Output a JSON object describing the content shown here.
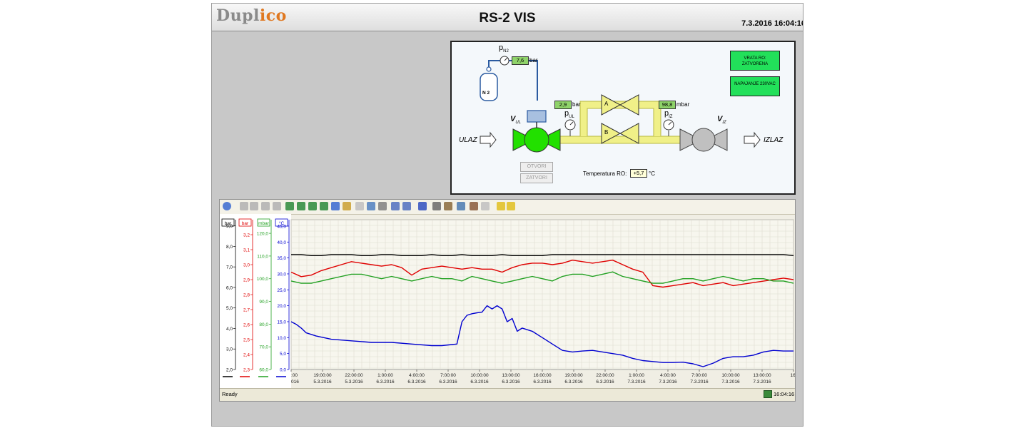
{
  "header": {
    "logo_part1": "Dupl",
    "logo_i": "i",
    "logo_part2": "co",
    "title": "RS-2 VIS",
    "datetime": "7.3.2016 16:04:16"
  },
  "schematic": {
    "pn2_main": "p",
    "pn2_sub": "N2",
    "pn2_value": "7,6",
    "pn2_unit": "bar",
    "n2_label": "N 2",
    "vul_main": "V",
    "vul_sub": "UL",
    "pul_main": "p",
    "pul_sub": "UL",
    "pul_value": "2,9",
    "pul_unit": "bar",
    "valve_a": "A",
    "valve_b": "B",
    "piz_main": "p",
    "piz_sub": "IZ",
    "piz_value": "98,8",
    "piz_unit": "mbar",
    "viz_main": "V",
    "viz_sub": "IZ",
    "ulaz": "ULAZ",
    "izlaz": "IZLAZ",
    "door_status": "VRATA RO: ZATVORENA",
    "power_status": "NAPAJANJE 230VAC",
    "open_button": "OTVORI",
    "close_button": "ZATVORI",
    "temp_label": "Temperatura RO:",
    "temp_value": "+5,7",
    "temp_unit": "°C",
    "colors": {
      "valve_active": "#22e000",
      "valve_inactive": "#c0c0c0",
      "pipe": "#f0f088",
      "n2_line": "#2a5aa0"
    }
  },
  "trend": {
    "status_ready": "Ready",
    "status_time": "16:04:16",
    "toolbar_icons": [
      "help-icon",
      "first-icon",
      "prev-icon",
      "next-icon",
      "last-icon",
      "zoom-in-icon",
      "zoom-in-x-icon",
      "zoom-out-icon",
      "zoom-reset-icon",
      "pan-icon",
      "cursor-icon",
      "grid-icon",
      "list-icon",
      "clock-icon",
      "timespan-icon",
      "timespan2-icon",
      "pause-icon",
      "print-icon",
      "copy-icon",
      "config-icon",
      "export-icon",
      "disabled-icon",
      "alarm-icon",
      "bookmark-icon"
    ]
  },
  "chart_data": {
    "type": "line",
    "axes": [
      {
        "unit": "bar",
        "color": "#000000",
        "ticks": [
          "2,0",
          "3,0",
          "4,0",
          "5,0",
          "6,0",
          "7,0",
          "8,0",
          "9,0"
        ]
      },
      {
        "unit": "bar",
        "color": "#e00000",
        "ticks": [
          "2,3",
          "2,4",
          "2,5",
          "2,6",
          "2,7",
          "2,8",
          "2,9",
          "3,0",
          "3,1",
          "3,2"
        ]
      },
      {
        "unit": "mbar",
        "color": "#20a020",
        "ticks": [
          "60,0",
          "70,0",
          "80,0",
          "90,0",
          "100,0",
          "110,0",
          "120,0"
        ]
      },
      {
        "unit": "°C",
        "color": "#0000d0",
        "ticks": [
          "0,0",
          "5,0",
          "10,0",
          "15,0",
          "20,0",
          "25,0",
          "30,0",
          "35,0",
          "40,0",
          "45,0"
        ]
      }
    ],
    "x_labels": [
      {
        "time": ":00",
        "date": "016"
      },
      {
        "time": "19:00:00",
        "date": "5.3.2016"
      },
      {
        "time": "22:00:00",
        "date": "5.3.2016"
      },
      {
        "time": "1:00:00",
        "date": "6.3.2016"
      },
      {
        "time": "4:00:00",
        "date": "6.3.2016"
      },
      {
        "time": "7:00:00",
        "date": "6.3.2016"
      },
      {
        "time": "10:00:00",
        "date": "6.3.2016"
      },
      {
        "time": "13:00:00",
        "date": "6.3.2016"
      },
      {
        "time": "16:00:00",
        "date": "6.3.2016"
      },
      {
        "time": "19:00:00",
        "date": "6.3.2016"
      },
      {
        "time": "22:00:00",
        "date": "6.3.2016"
      },
      {
        "time": "1:00:00",
        "date": "7.3.2016"
      },
      {
        "time": "4:00:00",
        "date": "7.3.2016"
      },
      {
        "time": "7:00:00",
        "date": "7.3.2016"
      },
      {
        "time": "10:00:00",
        "date": "7.3.2016"
      },
      {
        "time": "13:00:00",
        "date": "7.3.2016"
      },
      {
        "time": "16:"
      }
    ],
    "series": [
      {
        "axis": 0,
        "color": "#000000",
        "x": [
          0,
          2,
          4,
          6,
          8,
          10,
          12,
          14,
          16,
          18,
          20,
          22,
          24,
          26,
          28,
          30,
          32,
          34,
          36,
          38,
          40,
          42,
          44,
          46,
          48,
          50,
          52,
          54,
          56,
          58,
          60,
          62,
          64,
          66,
          68,
          70,
          72,
          74,
          76,
          78,
          80,
          82,
          84,
          86,
          88,
          90,
          92,
          94,
          96,
          98,
          100
        ],
        "values": [
          7.6,
          7.6,
          7.55,
          7.55,
          7.6,
          7.6,
          7.6,
          7.55,
          7.55,
          7.6,
          7.6,
          7.55,
          7.55,
          7.55,
          7.6,
          7.55,
          7.55,
          7.6,
          7.55,
          7.55,
          7.55,
          7.6,
          7.55,
          7.55,
          7.55,
          7.55,
          7.6,
          7.6,
          7.6,
          7.6,
          7.6,
          7.6,
          7.6,
          7.6,
          7.6,
          7.6,
          7.6,
          7.6,
          7.6,
          7.6,
          7.6,
          7.6,
          7.6,
          7.6,
          7.6,
          7.6,
          7.6,
          7.6,
          7.6,
          7.6,
          7.55
        ]
      },
      {
        "axis": 1,
        "color": "#e00000",
        "x": [
          0,
          2,
          4,
          6,
          8,
          10,
          12,
          14,
          16,
          18,
          20,
          22,
          24,
          26,
          28,
          30,
          32,
          34,
          36,
          38,
          40,
          42,
          44,
          46,
          48,
          50,
          52,
          54,
          56,
          58,
          60,
          62,
          64,
          66,
          68,
          70,
          72,
          74,
          76,
          78,
          80,
          82,
          84,
          86,
          88,
          90,
          92,
          94,
          96,
          98,
          100
        ],
        "values": [
          2.95,
          2.92,
          2.93,
          2.96,
          2.98,
          3.0,
          3.02,
          3.01,
          3.0,
          2.99,
          3.0,
          2.98,
          2.93,
          2.97,
          2.98,
          2.99,
          2.98,
          2.97,
          2.98,
          2.97,
          2.97,
          2.95,
          2.98,
          3.0,
          3.01,
          3.01,
          3.0,
          3.01,
          3.03,
          3.02,
          3.01,
          3.02,
          3.03,
          3.0,
          2.97,
          2.95,
          2.86,
          2.85,
          2.86,
          2.87,
          2.88,
          2.86,
          2.87,
          2.88,
          2.86,
          2.87,
          2.88,
          2.89,
          2.9,
          2.91,
          2.9
        ]
      },
      {
        "axis": 2,
        "color": "#20a020",
        "x": [
          0,
          2,
          4,
          6,
          8,
          10,
          12,
          14,
          16,
          18,
          20,
          22,
          24,
          26,
          28,
          30,
          32,
          34,
          36,
          38,
          40,
          42,
          44,
          46,
          48,
          50,
          52,
          54,
          56,
          58,
          60,
          62,
          64,
          66,
          68,
          70,
          72,
          74,
          76,
          78,
          80,
          82,
          84,
          86,
          88,
          90,
          92,
          94,
          96,
          98,
          100
        ],
        "values": [
          99,
          98,
          98,
          99,
          100,
          101,
          102,
          102,
          101,
          100,
          101,
          100,
          99,
          100,
          101,
          100,
          100,
          99,
          101,
          100,
          99,
          98,
          99,
          100,
          101,
          100,
          99,
          101,
          102,
          102,
          101,
          102,
          103,
          101,
          100,
          99,
          98,
          98,
          99,
          100,
          100,
          99,
          100,
          101,
          100,
          99,
          100,
          100,
          99,
          99,
          98
        ]
      },
      {
        "axis": 3,
        "color": "#0000d0",
        "x": [
          0,
          1,
          2,
          3,
          5,
          8,
          12,
          16,
          20,
          24,
          28,
          30,
          33,
          34,
          35,
          36,
          37,
          38,
          39,
          40,
          41,
          42,
          43,
          44,
          45,
          46,
          48,
          50,
          52,
          54,
          56,
          58,
          60,
          62,
          64,
          66,
          68,
          70,
          72,
          74,
          76,
          78,
          80,
          82,
          84,
          86,
          88,
          90,
          92,
          94,
          96,
          98,
          100
        ],
        "values": [
          15,
          14.2,
          13,
          11.5,
          10.5,
          9.5,
          9,
          8.5,
          8.5,
          8,
          7.5,
          7.5,
          8,
          15,
          17,
          17.5,
          17.8,
          18,
          20,
          19,
          20,
          19,
          15,
          16,
          12,
          13,
          12,
          10,
          8,
          6,
          5.5,
          5.8,
          6,
          5.5,
          5,
          4.5,
          3.5,
          2.8,
          2.5,
          2.2,
          2.2,
          2.3,
          1.8,
          0.9,
          2,
          3.5,
          4,
          4,
          4.5,
          5.5,
          6,
          5.8,
          5.8
        ]
      }
    ]
  }
}
